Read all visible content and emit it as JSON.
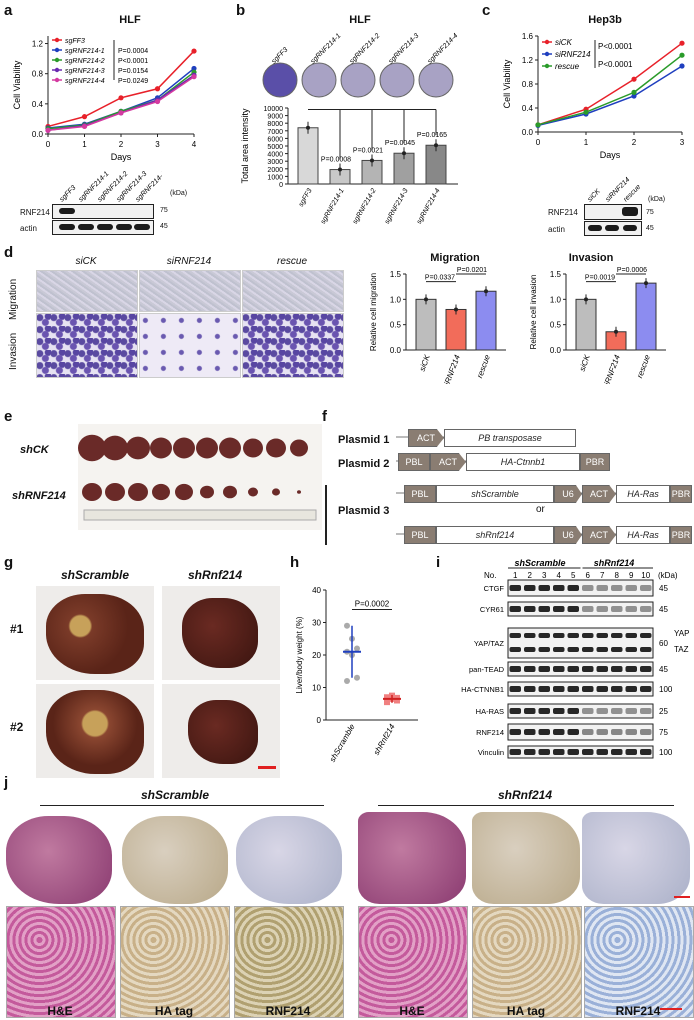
{
  "panels": {
    "a": {
      "label": "a",
      "title": "HLF",
      "xlabel": "Days",
      "ylabel": "Cell Viability",
      "yticks": [
        "0.0",
        "0.4",
        "0.8",
        "1.2"
      ],
      "xticks": [
        "0",
        "1",
        "2",
        "3",
        "4"
      ],
      "legend": [
        {
          "name": "sgFF3",
          "color": "#e8212a",
          "p": ""
        },
        {
          "name": "sgRNF214-1",
          "color": "#1f3fbf",
          "p": "P=0.0004"
        },
        {
          "name": "sgRNF214-2",
          "color": "#2a9b2a",
          "p": "P<0.0001"
        },
        {
          "name": "sgRNF214-3",
          "color": "#6a2ab0",
          "p": "P=0.0154"
        },
        {
          "name": "sgRNF214-4",
          "color": "#d43aa0",
          "p": "P=0.0249"
        }
      ],
      "blot_lanes": [
        "sgFF3",
        "sgRNF214-1",
        "sgRNF214-2",
        "sgRNF214-3",
        "sgRNF214-4"
      ],
      "blot_rows": [
        "RNF214",
        "actin"
      ],
      "blot_kda": [
        "75",
        "45"
      ],
      "kda_unit": "(kDa)"
    },
    "b": {
      "label": "b",
      "title": "HLF",
      "ylabel": "Total area intensity",
      "yticks": [
        "0",
        "1000",
        "2000",
        "3000",
        "4000",
        "5000",
        "6000",
        "7000",
        "8000",
        "9000",
        "10000"
      ],
      "colonies": [
        "sgFF3",
        "sgRNF214-1",
        "sgRNF214-2",
        "sgRNF214-3",
        "sgRNF214-4"
      ],
      "pvals": [
        "P=0.0008",
        "P=0.0021",
        "P=0.0045",
        "P=0.0165"
      ]
    },
    "c": {
      "label": "c",
      "title": "Hep3b",
      "xlabel": "Days",
      "ylabel": "Cell Viability",
      "yticks": [
        "0.0",
        "0.4",
        "0.8",
        "1.2",
        "1.6"
      ],
      "xticks": [
        "0",
        "1",
        "2",
        "3"
      ],
      "legend": [
        {
          "name": "siCK",
          "color": "#e8212a"
        },
        {
          "name": "siRNF214",
          "color": "#1f3fbf"
        },
        {
          "name": "rescue",
          "color": "#2a9b2a"
        }
      ],
      "pvals": [
        "P<0.0001",
        "P<0.0001"
      ],
      "blot_lanes": [
        "siCK",
        "siRNF214",
        "rescue"
      ],
      "blot_rows": [
        "RNF214",
        "actin"
      ],
      "blot_kda": [
        "75",
        "45"
      ],
      "kda_unit": "(kDa)"
    },
    "d": {
      "label": "d",
      "col_labels": [
        "siCK",
        "siRNF214",
        "rescue"
      ],
      "row_labels": [
        "Migration",
        "Invasion"
      ],
      "migration": {
        "title": "Migration",
        "ylabel": "Relative cell migration",
        "yticks": [
          "0.0",
          "0.5",
          "1.0",
          "1.5"
        ],
        "pvals": [
          "P=0.0337",
          "P=0.0201"
        ],
        "cats": [
          "siCK",
          "siRNF214",
          "rescue"
        ]
      },
      "invasion": {
        "title": "Invasion",
        "ylabel": "Relative cell invasion",
        "yticks": [
          "0.0",
          "0.5",
          "1.0",
          "1.5"
        ],
        "pvals": [
          "P=0.0019",
          "P=0.0006"
        ],
        "cats": [
          "siCK",
          "siRNF214",
          "rescue"
        ]
      }
    },
    "e": {
      "label": "e",
      "groups": [
        "shCK",
        "shRNF214"
      ]
    },
    "f": {
      "label": "f",
      "plasmids": [
        "Plasmid 1",
        "Plasmid 2",
        "Plasmid 3"
      ],
      "p1": {
        "act": "ACT",
        "gene": "PB transposase"
      },
      "p2": {
        "pbl": "PBL",
        "act": "ACT",
        "gene": "HA-Ctnnb1",
        "pbr": "PBR"
      },
      "p3a": {
        "pbl": "PBL",
        "gene": "shScramble",
        "u6": "U6",
        "act": "ACT",
        "ras": "HA-Ras",
        "pbr": "PBR"
      },
      "or": "or",
      "p3b": {
        "pbl": "PBL",
        "gene": "shRnf214",
        "u6": "U6",
        "act": "ACT",
        "ras": "HA-Ras",
        "pbr": "PBR"
      }
    },
    "g": {
      "label": "g",
      "cols": [
        "shScramble",
        "shRnf214"
      ],
      "rows": [
        "#1",
        "#2"
      ]
    },
    "h": {
      "label": "h",
      "ylabel": "Liver/body weight (%)",
      "yticks": [
        "0",
        "10",
        "20",
        "30",
        "40"
      ],
      "cats": [
        "shScramble",
        "shRnf214"
      ],
      "pval": "P=0.0002"
    },
    "i": {
      "label": "i",
      "groups": [
        "shScramble",
        "shRnf214"
      ],
      "no_label": "No.",
      "lanes": [
        "1",
        "2",
        "3",
        "4",
        "5",
        "6",
        "7",
        "8",
        "9",
        "10"
      ],
      "kda_unit": "(kDa)",
      "rows": [
        "CTGF",
        "CYR61",
        "YAP/TAZ",
        "pan-TEAD",
        "HA-CTNNB1",
        "HA-RAS",
        "RNF214",
        "Vinculin"
      ],
      "kda": [
        "45",
        "45",
        "60",
        "45",
        "100",
        "25",
        "75",
        "100"
      ],
      "side": [
        "YAP",
        "TAZ"
      ]
    },
    "j": {
      "label": "j",
      "groups": [
        "shScramble",
        "shRnf214"
      ],
      "stains": [
        "H&E",
        "HA tag",
        "RNF214",
        "H&E",
        "HA tag",
        "RNF214"
      ]
    }
  },
  "chart_data": [
    {
      "type": "line",
      "title": "HLF",
      "xlabel": "Days",
      "ylabel": "Cell Viability",
      "x": [
        0,
        1,
        2,
        3,
        4
      ],
      "ylim": [
        0,
        1.3
      ],
      "series": [
        {
          "name": "sgFF3",
          "values": [
            0.1,
            0.23,
            0.48,
            0.6,
            1.1
          ]
        },
        {
          "name": "sgRNF214-1",
          "values": [
            0.08,
            0.13,
            0.3,
            0.48,
            0.87
          ]
        },
        {
          "name": "sgRNF214-2",
          "values": [
            0.07,
            0.12,
            0.3,
            0.45,
            0.82
          ]
        },
        {
          "name": "sgRNF214-3",
          "values": [
            0.05,
            0.11,
            0.28,
            0.45,
            0.78
          ]
        },
        {
          "name": "sgRNF214-4",
          "values": [
            0.05,
            0.1,
            0.28,
            0.43,
            0.76
          ]
        }
      ]
    },
    {
      "type": "bar",
      "title": "HLF",
      "ylabel": "Total area intensity",
      "categories": [
        "sgFF3",
        "sgRNF214-1",
        "sgRNF214-2",
        "sgRNF214-3",
        "sgRNF214-4"
      ],
      "values": [
        7400,
        1900,
        3100,
        4050,
        5100
      ],
      "ylim": [
        0,
        10000
      ]
    },
    {
      "type": "line",
      "title": "Hep3b",
      "xlabel": "Days",
      "ylabel": "Cell Viability",
      "x": [
        0,
        1,
        2,
        3
      ],
      "ylim": [
        0,
        1.6
      ],
      "series": [
        {
          "name": "siCK",
          "values": [
            0.12,
            0.38,
            0.88,
            1.48
          ]
        },
        {
          "name": "siRNF214",
          "values": [
            0.11,
            0.3,
            0.6,
            1.1
          ]
        },
        {
          "name": "rescue",
          "values": [
            0.12,
            0.33,
            0.66,
            1.28
          ]
        }
      ]
    },
    {
      "type": "bar",
      "title": "Migration",
      "ylabel": "Relative cell migration",
      "categories": [
        "siCK",
        "siRNF214",
        "rescue"
      ],
      "values": [
        1.0,
        0.8,
        1.16
      ],
      "ylim": [
        0,
        1.5
      ]
    },
    {
      "type": "bar",
      "title": "Invasion",
      "ylabel": "Relative cell invasion",
      "categories": [
        "siCK",
        "siRNF214",
        "rescue"
      ],
      "values": [
        1.0,
        0.36,
        1.32
      ],
      "ylim": [
        0,
        1.5
      ]
    },
    {
      "type": "scatter",
      "ylabel": "Liver/body weight (%)",
      "categories": [
        "shScramble",
        "shRnf214"
      ],
      "values": [
        21,
        6.5
      ],
      "ylim": [
        0,
        40
      ]
    }
  ]
}
